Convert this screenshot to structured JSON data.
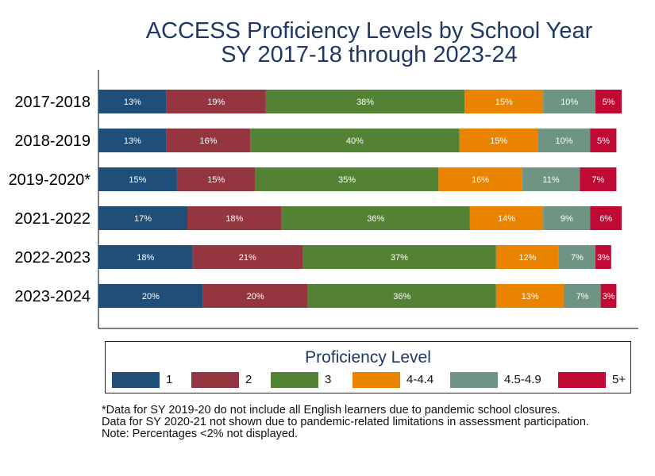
{
  "title_line1": "ACCESS Proficiency Levels by School Year",
  "title_line2": "SY 2017-18 through 2023-24",
  "legend": {
    "title": "Proficiency Level",
    "items": [
      {
        "label": "1",
        "color": "#1f4e79"
      },
      {
        "label": "2",
        "color": "#943540"
      },
      {
        "label": "3",
        "color": "#548235"
      },
      {
        "label": "4-4.4",
        "color": "#e98300"
      },
      {
        "label": "4.5-4.9",
        "color": "#6e9483"
      },
      {
        "label": "5+",
        "color": "#c00a33"
      }
    ]
  },
  "notes": [
    "*Data for SY 2019-20 do not include all English learners due to pandemic school closures.",
    "Data for SY 2020-21 not shown due to pandemic-related limitations in assessment participation.",
    "Note: Percentages <2% not displayed."
  ],
  "chart_data": {
    "type": "bar",
    "orientation": "horizontal",
    "stacked": true,
    "categories": [
      "2017-2018",
      "2018-2019",
      "2019-2020*",
      "2021-2022",
      "2022-2023",
      "2023-2024"
    ],
    "series": [
      {
        "name": "1",
        "values": [
          13,
          13,
          15,
          17,
          18,
          20
        ],
        "labels": [
          "13%",
          "13%",
          "15%",
          "17%",
          "18%",
          "20%"
        ]
      },
      {
        "name": "2",
        "values": [
          19,
          16,
          15,
          18,
          21,
          20
        ],
        "labels": [
          "19%",
          "16%",
          "15%",
          "18%",
          "21%",
          "20%"
        ]
      },
      {
        "name": "3",
        "values": [
          38,
          40,
          35,
          36,
          37,
          36
        ],
        "labels": [
          "38%",
          "40%",
          "35%",
          "36%",
          "37%",
          "36%"
        ]
      },
      {
        "name": "4-4.4",
        "values": [
          15,
          15,
          16,
          14,
          12,
          13
        ],
        "labels": [
          "15%",
          "15%",
          "16%",
          "14%",
          "12%",
          "13%"
        ]
      },
      {
        "name": "4.5-4.9",
        "values": [
          10,
          10,
          11,
          9,
          7,
          7
        ],
        "labels": [
          "10%",
          "10%",
          "11%",
          "9%",
          "7%",
          "7%"
        ]
      },
      {
        "name": "5+",
        "values": [
          5,
          5,
          7,
          6,
          3,
          3
        ],
        "labels": [
          "5%",
          "5%",
          "7%",
          "6%",
          "3%",
          "3%"
        ]
      }
    ],
    "xlim": [
      0,
      100
    ],
    "grid": false,
    "legend_position": "bottom"
  }
}
